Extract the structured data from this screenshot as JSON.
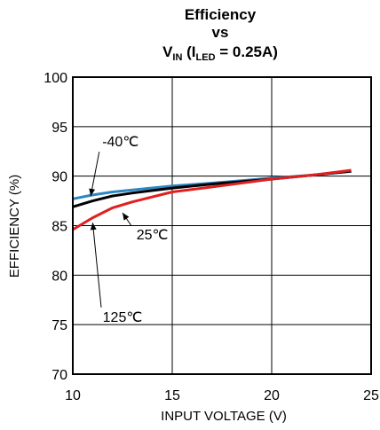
{
  "chart_data": {
    "type": "line",
    "title_lines": [
      "Efficiency",
      "vs"
    ],
    "title_third": {
      "v": "V",
      "v_sub": "IN",
      "paren_open": " (I",
      "i_sub": "LED",
      "rest": " = 0.25A)"
    },
    "xlabel": "INPUT VOLTAGE (V)",
    "ylabel": "EFFICIENCY (%)",
    "xlim": [
      10,
      25
    ],
    "ylim": [
      70,
      100
    ],
    "xticks": [
      "10",
      "15",
      "20",
      "25"
    ],
    "yticks": [
      "70",
      "75",
      "80",
      "85",
      "90",
      "95",
      "100"
    ],
    "grid": true,
    "series": [
      {
        "name": "-40℃",
        "color": "#2E86C1",
        "x": [
          10,
          11,
          12,
          13,
          15,
          17,
          20,
          22,
          24
        ],
        "y": [
          87.7,
          88.1,
          88.4,
          88.6,
          89.0,
          89.3,
          89.8,
          90.1,
          90.5
        ]
      },
      {
        "name": "25℃",
        "color": "#000000",
        "x": [
          10,
          11,
          12,
          13,
          15,
          17,
          20,
          22,
          24
        ],
        "y": [
          86.9,
          87.5,
          88.0,
          88.3,
          88.8,
          89.2,
          89.7,
          90.1,
          90.5
        ]
      },
      {
        "name": "125℃",
        "color": "#E02020",
        "x": [
          10,
          11,
          12,
          13,
          15,
          17,
          20,
          22,
          24
        ],
        "y": [
          84.6,
          85.8,
          86.8,
          87.4,
          88.4,
          88.9,
          89.7,
          90.1,
          90.6
        ]
      }
    ],
    "annotations": [
      {
        "text": "-40℃",
        "x": 12.4,
        "y": 93.0,
        "arrow_to": [
          10.9,
          88.0
        ]
      },
      {
        "text": "25℃",
        "x": 14.0,
        "y": 83.6,
        "arrow_to": [
          12.5,
          86.3
        ]
      },
      {
        "text": "125℃",
        "x": 12.5,
        "y": 75.3,
        "arrow_to": [
          11.0,
          85.3
        ]
      }
    ]
  }
}
